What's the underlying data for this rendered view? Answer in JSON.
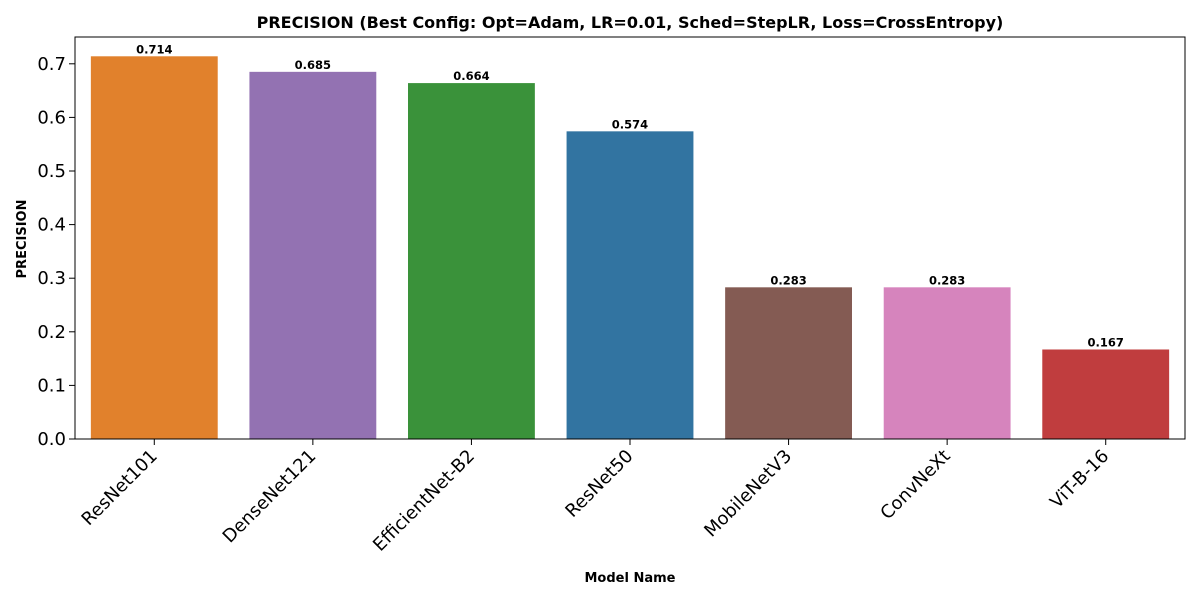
{
  "chart_data": {
    "type": "bar",
    "title": "PRECISION (Best Config: Opt=Adam, LR=0.01, Sched=StepLR, Loss=CrossEntropy)",
    "xlabel": "Model Name",
    "ylabel": "PRECISION",
    "categories": [
      "ResNet101",
      "DenseNet121",
      "EfficientNet-B2",
      "ResNet50",
      "MobileNetV3",
      "ConvNeXt",
      "ViT-B-16"
    ],
    "values": [
      0.714,
      0.685,
      0.664,
      0.574,
      0.283,
      0.283,
      0.167
    ],
    "value_labels": [
      "0.714",
      "0.685",
      "0.664",
      "0.574",
      "0.283",
      "0.283",
      "0.167"
    ],
    "colors": [
      "#e1812c",
      "#9372b2",
      "#3a923a",
      "#3274a1",
      "#845b53",
      "#d684bd",
      "#c03d3e"
    ],
    "ylim": [
      0,
      0.75
    ],
    "yticks": [
      0.0,
      0.1,
      0.2,
      0.3,
      0.4,
      0.5,
      0.6,
      0.7
    ],
    "ytick_labels": [
      "0.0",
      "0.1",
      "0.2",
      "0.3",
      "0.4",
      "0.5",
      "0.6",
      "0.7"
    ],
    "grid": false,
    "legend": "none"
  }
}
